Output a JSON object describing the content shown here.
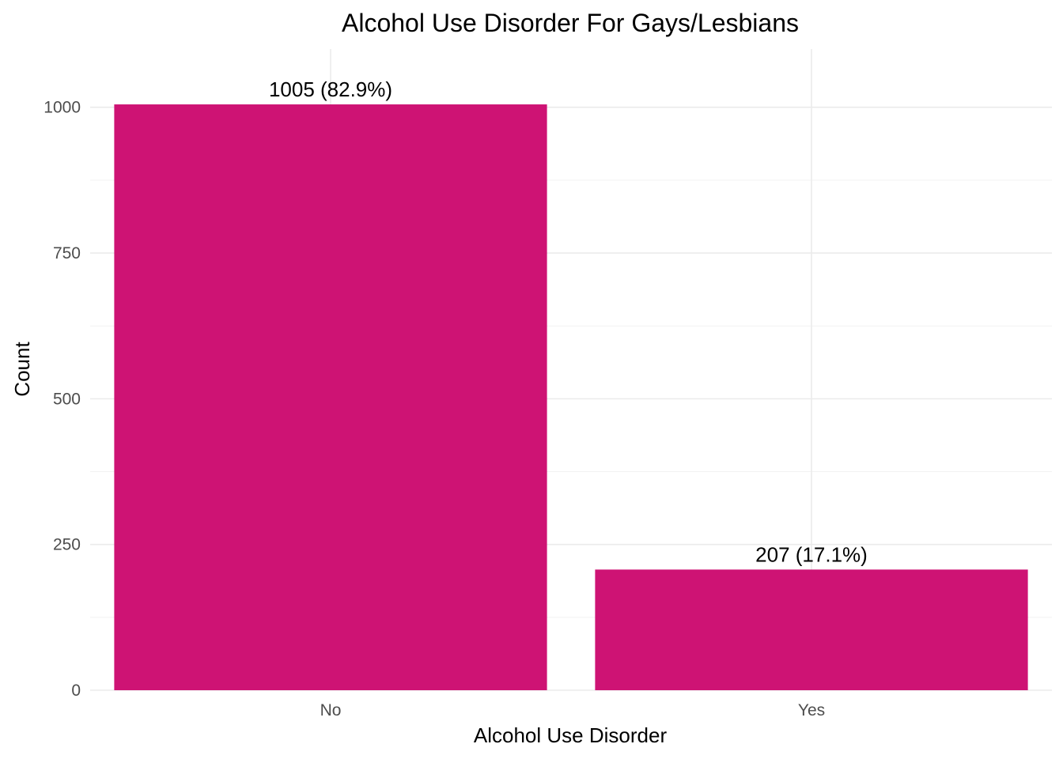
{
  "chart_data": {
    "type": "bar",
    "title": "Alcohol Use Disorder For Gays/Lesbians",
    "xlabel": "Alcohol Use Disorder",
    "ylabel": "Count",
    "categories": [
      "No",
      "Yes"
    ],
    "values": [
      1005,
      207
    ],
    "data_labels": [
      "1005 (82.9%)",
      "207 (17.1%)"
    ],
    "y_ticks": [
      0,
      250,
      500,
      750,
      1000
    ],
    "ylim": [
      0,
      1100
    ],
    "grid": true,
    "bar_color": "#CE1374"
  }
}
